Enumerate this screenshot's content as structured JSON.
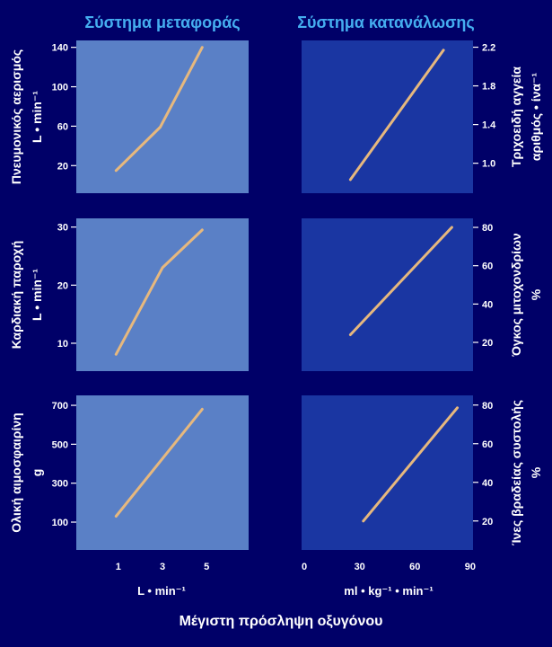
{
  "colors": {
    "background": "#000068",
    "column_title": "#45aef0",
    "transport_panel": "#5a80c6",
    "consumption_panel": "#1a36a2",
    "line": "#e6b87e",
    "text": "#ffffff"
  },
  "chart_data": {
    "type": "line",
    "xlabel": "Μέγιστη πρόσληψη οξυγόνου",
    "grid": false,
    "legend": "none",
    "columns": [
      {
        "title": "Σύστημα μεταφοράς",
        "x_unit": "L • min⁻¹",
        "x_ticks": [
          "1",
          "3",
          "5"
        ],
        "xlim": [
          -0.9,
          6.9
        ],
        "y_axis_side": "left",
        "panels": [
          {
            "ylabel": "Πνευμονικός αερισμός",
            "y_unit": "L • min⁻¹",
            "y_ticks": [
              "20",
              "60",
              "100",
              "140"
            ],
            "ylim": [
              -8,
              147
            ],
            "x": [
              0.9,
              2.9,
              4.8
            ],
            "y": [
              15,
              59,
              140
            ]
          },
          {
            "ylabel": "Καρδιακή παροχή",
            "y_unit": "L • min⁻¹",
            "y_ticks": [
              "10",
              "20",
              "30"
            ],
            "ylim": [
              5.2,
              31.5
            ],
            "x": [
              0.9,
              3.0,
              4.8
            ],
            "y": [
              8.1,
              23,
              29.5
            ]
          },
          {
            "ylabel": "Ολική αιμοσφαιρίνη",
            "y_unit": "g",
            "y_ticks": [
              "100",
              "300",
              "500",
              "700"
            ],
            "ylim": [
              -43,
              751
            ],
            "x": [
              0.9,
              4.8
            ],
            "y": [
              130,
              680
            ]
          }
        ]
      },
      {
        "title": "Σύστημα κατανάλωσης",
        "x_unit": "ml • kg⁻¹ • min⁻¹",
        "x_ticks": [
          "0",
          "30",
          "60",
          "90"
        ],
        "xlim": [
          -1.5,
          91.5
        ],
        "y_axis_side": "right",
        "panels": [
          {
            "ylabel": "Τριχοειδή αγγεία",
            "y_unit": "αριθμός • ίνα⁻¹",
            "y_ticks": [
              "1.0",
              "1.4",
              "1.8",
              "2.2"
            ],
            "ylim": [
              0.69,
              2.27
            ],
            "x": [
              25,
              75.5
            ],
            "y": [
              0.83,
              2.17
            ]
          },
          {
            "ylabel": "Όγκος μιτοχονδρίων",
            "y_unit": "%",
            "y_ticks": [
              "20",
              "40",
              "60",
              "80"
            ],
            "ylim": [
              5,
              84.7
            ],
            "x": [
              25,
              80
            ],
            "y": [
              24,
              80
            ]
          },
          {
            "ylabel": "Ίνες βραδείας συστολής",
            "y_unit": "%",
            "y_ticks": [
              "20",
              "40",
              "60",
              "80"
            ],
            "ylim": [
              5,
              85
            ],
            "x": [
              32,
              83
            ],
            "y": [
              20,
              78.6
            ]
          }
        ]
      }
    ]
  }
}
